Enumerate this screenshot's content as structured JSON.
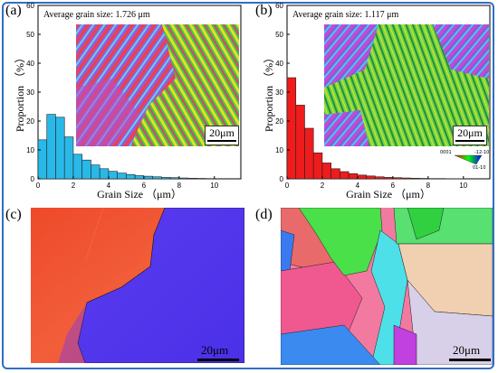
{
  "panels": {
    "a": {
      "label": "(a)"
    },
    "b": {
      "label": "(b)"
    },
    "c": {
      "label": "(c)"
    },
    "d": {
      "label": "(d)"
    }
  },
  "scale_labels": {
    "a": "20μm",
    "b": "20μm",
    "c": "20μm",
    "d": "20μm"
  },
  "ipf_legend": {
    "corner_0001": "0001",
    "corner_1210": "-12-10",
    "corner_0110": "01-10"
  },
  "colors": {
    "frame": "#2f6fc4",
    "bars_a": "#29b9e8",
    "bars_b": "#ee1c1c"
  },
  "chart_data": [
    {
      "type": "bar",
      "annotation": "Average grain size: 1.726 μm",
      "xlabel": "Grain Size （μm）",
      "ylabel": "Proportion （%）",
      "xlim": [
        0,
        11.5
      ],
      "ylim": [
        0,
        60
      ],
      "xticks": [
        0,
        2,
        4,
        6,
        8,
        10
      ],
      "yticks": [
        0,
        10,
        20,
        30,
        40,
        50,
        60
      ],
      "bar_width": 0.5,
      "x": [
        0.25,
        0.75,
        1.25,
        1.75,
        2.25,
        2.75,
        3.25,
        3.75,
        4.25,
        4.75,
        5.25,
        5.75,
        6.25,
        6.75,
        7.25,
        7.75,
        8.25,
        8.75,
        9.25,
        9.75
      ],
      "values": [
        13.5,
        22.3,
        21.3,
        14.5,
        8.5,
        6.5,
        4.8,
        3.5,
        2.6,
        2.0,
        1.5,
        1.1,
        0.9,
        0.7,
        0.5,
        0.4,
        0.3,
        0.2,
        0.15,
        0.1
      ]
    },
    {
      "type": "bar",
      "annotation": "Average grain size: 1.117 μm",
      "xlabel": "Grain Size （μm）",
      "ylabel": "Proportion （%）",
      "xlim": [
        0,
        11.5
      ],
      "ylim": [
        0,
        60
      ],
      "xticks": [
        0,
        2,
        4,
        6,
        8,
        10
      ],
      "yticks": [
        0,
        10,
        20,
        30,
        40,
        50,
        60
      ],
      "bar_width": 0.5,
      "x": [
        0.25,
        0.75,
        1.25,
        1.75,
        2.25,
        2.75,
        3.25,
        3.75,
        4.25,
        4.75,
        5.25,
        5.75,
        6.25,
        6.75,
        7.25,
        7.75,
        8.25,
        8.75,
        9.25,
        9.75
      ],
      "values": [
        35.0,
        25.5,
        17.5,
        9.0,
        5.5,
        3.5,
        2.5,
        1.8,
        1.3,
        1.0,
        0.7,
        0.5,
        0.4,
        0.3,
        0.2,
        0.15,
        0.1,
        0.1,
        0.05,
        0.05
      ]
    }
  ]
}
